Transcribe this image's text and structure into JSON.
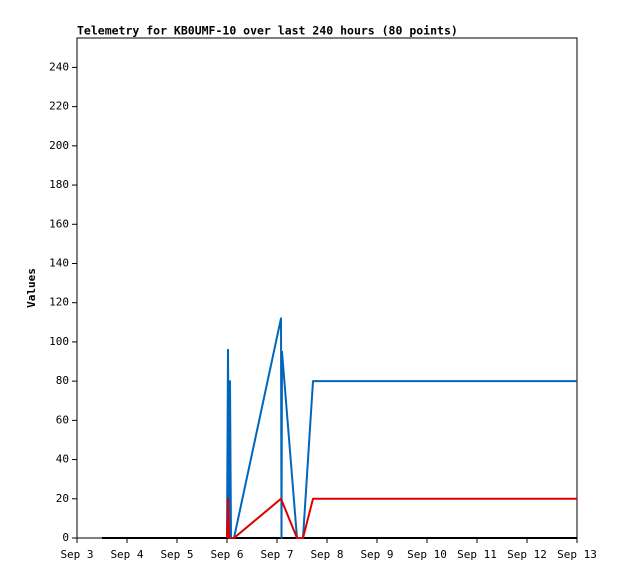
{
  "chart_data": {
    "type": "line",
    "title": "Telemetry for KB0UMF-10 over last 240 hours (80 points)",
    "y_label": "Values",
    "xlim": [
      3,
      13
    ],
    "xticks": [
      {
        "value": 3,
        "label": "Sep 3"
      },
      {
        "value": 4,
        "label": "Sep 4"
      },
      {
        "value": 5,
        "label": "Sep 5"
      },
      {
        "value": 6,
        "label": "Sep 6"
      },
      {
        "value": 7,
        "label": "Sep 7"
      },
      {
        "value": 8,
        "label": "Sep 8"
      },
      {
        "value": 9,
        "label": "Sep 9"
      },
      {
        "value": 10,
        "label": "Sep 10"
      },
      {
        "value": 11,
        "label": "Sep 11"
      },
      {
        "value": 12,
        "label": "Sep 12"
      },
      {
        "value": 13,
        "label": "Sep 13"
      }
    ],
    "ylim": [
      0,
      255
    ],
    "yticks": [
      0,
      20,
      40,
      60,
      80,
      100,
      120,
      140,
      160,
      180,
      200,
      220,
      240
    ],
    "grid": false,
    "series": [
      {
        "color": "#000000",
        "x": [
          3.5,
          13
        ],
        "values": [
          0,
          0
        ]
      },
      {
        "color": "#0066bb",
        "x": [
          6.0,
          6.02,
          6.04,
          6.06,
          6.08,
          6.14,
          7.08,
          7.09,
          7.1,
          7.4,
          7.52,
          7.72,
          13
        ],
        "values": [
          0,
          96,
          0,
          80,
          0,
          0,
          112,
          0,
          95,
          0,
          0,
          80,
          80
        ]
      },
      {
        "color": "#dd0000",
        "x": [
          6.0,
          6.02,
          6.04,
          6.14,
          7.08,
          7.4,
          7.52,
          7.72,
          13
        ],
        "values": [
          0,
          20,
          0,
          0,
          20,
          0,
          0,
          20,
          20
        ]
      }
    ]
  }
}
